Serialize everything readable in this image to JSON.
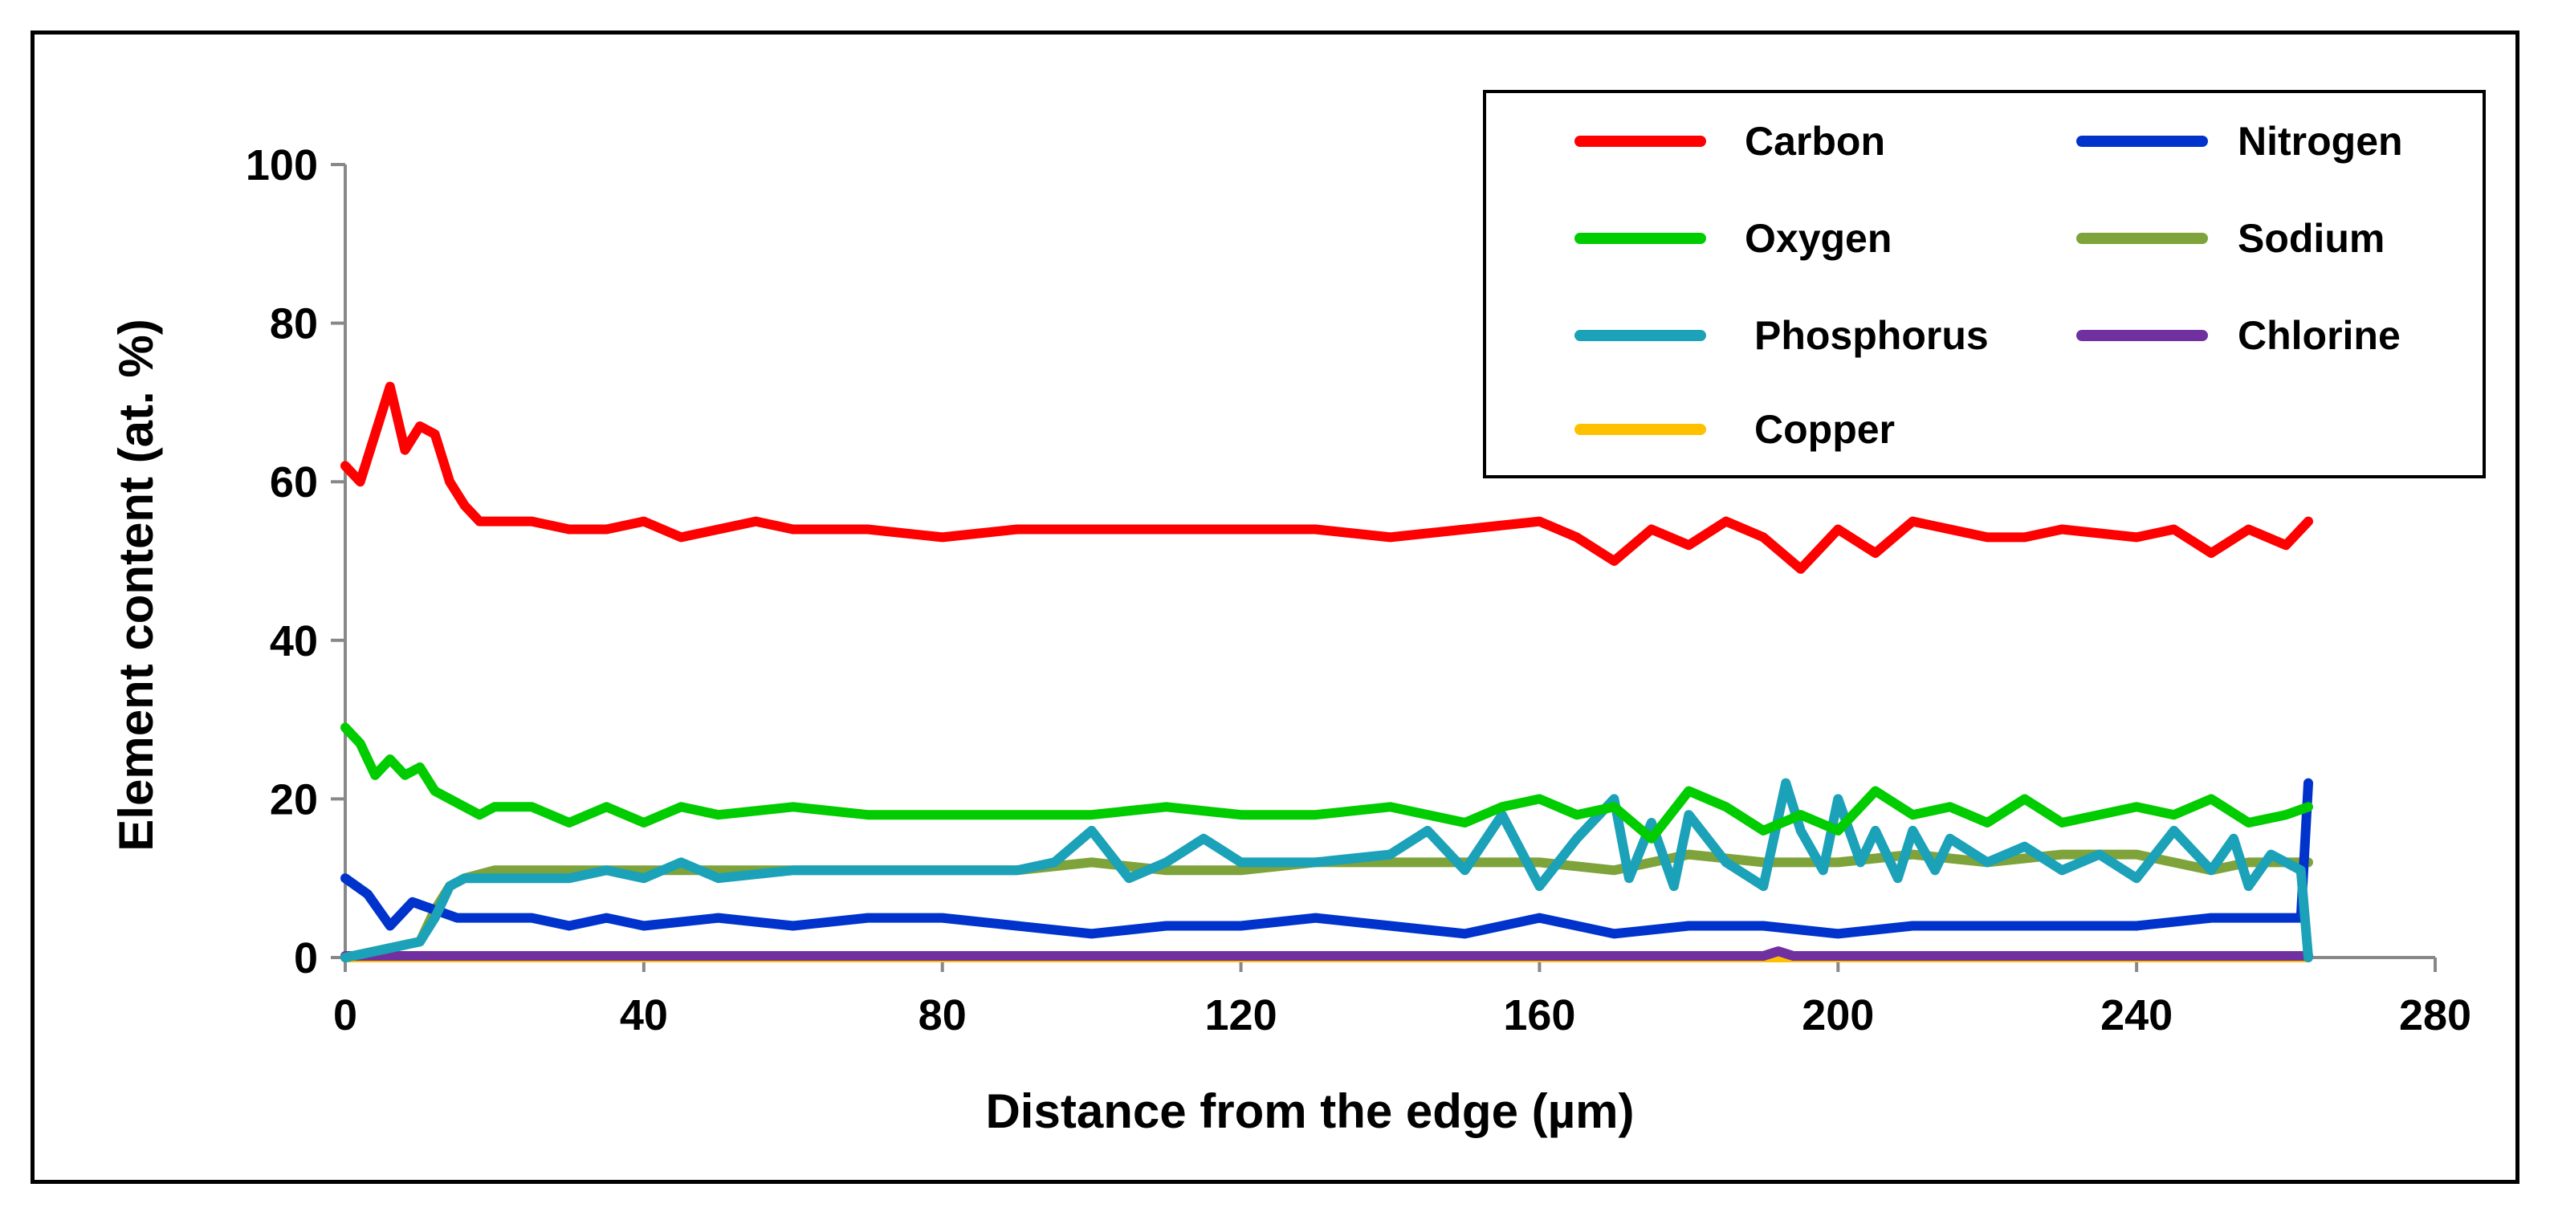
{
  "chart_data": {
    "type": "line",
    "title": "",
    "xlabel": "Distance from the edge (µm)",
    "ylabel": "Element content (at. %)",
    "xlim": [
      0,
      280
    ],
    "ylim": [
      0,
      100
    ],
    "xticks": [
      "0",
      "40",
      "80",
      "120",
      "160",
      "200",
      "240",
      "280"
    ],
    "yticks": [
      "0",
      "20",
      "40",
      "60",
      "80",
      "100"
    ],
    "grid": false,
    "legend_position": "top-right",
    "series": [
      {
        "name": "Carbon",
        "color": "#ff0000",
        "x": [
          0,
          2,
          4,
          6,
          8,
          10,
          12,
          14,
          16,
          18,
          20,
          25,
          30,
          35,
          40,
          45,
          50,
          55,
          60,
          70,
          80,
          90,
          100,
          110,
          120,
          130,
          140,
          150,
          160,
          165,
          170,
          175,
          180,
          185,
          190,
          195,
          200,
          205,
          210,
          215,
          220,
          225,
          230,
          240,
          245,
          250,
          255,
          260,
          263
        ],
        "y": [
          62,
          60,
          66,
          72,
          64,
          67,
          66,
          60,
          57,
          55,
          55,
          55,
          54,
          54,
          55,
          53,
          54,
          55,
          54,
          54,
          53,
          54,
          54,
          54,
          54,
          54,
          53,
          54,
          55,
          53,
          50,
          54,
          52,
          55,
          53,
          49,
          54,
          51,
          55,
          54,
          53,
          53,
          54,
          53,
          54,
          51,
          54,
          52,
          55
        ]
      },
      {
        "name": "Nitrogen",
        "color": "#0033cc",
        "x": [
          0,
          3,
          6,
          9,
          12,
          15,
          20,
          25,
          30,
          35,
          40,
          50,
          60,
          70,
          80,
          90,
          100,
          110,
          120,
          130,
          140,
          150,
          160,
          170,
          180,
          190,
          200,
          210,
          220,
          230,
          240,
          250,
          255,
          260,
          262,
          263
        ],
        "y": [
          10,
          8,
          4,
          7,
          6,
          5,
          5,
          5,
          4,
          5,
          4,
          5,
          4,
          5,
          5,
          4,
          3,
          4,
          4,
          5,
          4,
          3,
          5,
          3,
          4,
          4,
          3,
          4,
          4,
          4,
          4,
          5,
          5,
          5,
          5,
          22
        ]
      },
      {
        "name": "Oxygen",
        "color": "#00cc00",
        "x": [
          0,
          2,
          4,
          6,
          8,
          10,
          12,
          14,
          16,
          18,
          20,
          25,
          30,
          35,
          40,
          45,
          50,
          60,
          70,
          80,
          90,
          100,
          110,
          120,
          130,
          140,
          150,
          155,
          160,
          165,
          170,
          175,
          180,
          185,
          190,
          195,
          200,
          205,
          210,
          215,
          220,
          225,
          230,
          240,
          245,
          250,
          255,
          260,
          263
        ],
        "y": [
          29,
          27,
          23,
          25,
          23,
          24,
          21,
          20,
          19,
          18,
          19,
          19,
          17,
          19,
          17,
          19,
          18,
          19,
          18,
          18,
          18,
          18,
          19,
          18,
          18,
          19,
          17,
          19,
          20,
          18,
          19,
          15,
          21,
          19,
          16,
          18,
          16,
          21,
          18,
          19,
          17,
          20,
          17,
          19,
          18,
          20,
          17,
          18,
          19
        ]
      },
      {
        "name": "Sodium",
        "color": "#7ea33a",
        "x": [
          0,
          5,
          10,
          12,
          14,
          16,
          20,
          25,
          30,
          40,
          50,
          60,
          70,
          80,
          90,
          100,
          110,
          120,
          130,
          140,
          150,
          160,
          170,
          180,
          190,
          200,
          210,
          220,
          230,
          240,
          250,
          255,
          260,
          263
        ],
        "y": [
          0,
          1,
          2,
          6,
          9,
          10,
          11,
          11,
          11,
          11,
          11,
          11,
          11,
          11,
          11,
          12,
          11,
          11,
          12,
          12,
          12,
          12,
          11,
          13,
          12,
          12,
          13,
          12,
          13,
          13,
          11,
          12,
          12,
          12
        ]
      },
      {
        "name": "Phosphorus",
        "color": "#1ba1b8",
        "x": [
          0,
          5,
          10,
          12,
          14,
          16,
          20,
          25,
          30,
          35,
          40,
          45,
          50,
          60,
          70,
          80,
          90,
          95,
          100,
          105,
          110,
          115,
          120,
          130,
          140,
          145,
          150,
          155,
          160,
          165,
          170,
          172,
          175,
          178,
          180,
          185,
          190,
          193,
          195,
          198,
          200,
          203,
          205,
          208,
          210,
          213,
          215,
          220,
          225,
          230,
          235,
          240,
          245,
          250,
          253,
          255,
          258,
          260,
          262,
          263
        ],
        "y": [
          0,
          1,
          2,
          5,
          9,
          10,
          10,
          10,
          10,
          11,
          10,
          12,
          10,
          11,
          11,
          11,
          11,
          12,
          16,
          10,
          12,
          15,
          12,
          12,
          13,
          16,
          11,
          18,
          9,
          15,
          20,
          10,
          17,
          9,
          18,
          12,
          9,
          22,
          16,
          11,
          20,
          12,
          16,
          10,
          16,
          11,
          15,
          12,
          14,
          11,
          13,
          10,
          16,
          11,
          15,
          9,
          13,
          12,
          11,
          0
        ]
      },
      {
        "name": "Chlorine",
        "color": "#7030a0",
        "x": [
          0,
          50,
          100,
          150,
          190,
          192,
          194,
          200,
          250,
          263
        ],
        "y": [
          0.2,
          0.2,
          0.2,
          0.2,
          0.2,
          0.8,
          0.2,
          0.2,
          0.2,
          0.2
        ]
      },
      {
        "name": "Copper",
        "color": "#ffc000",
        "x": [
          0,
          263
        ],
        "y": [
          0,
          0
        ]
      }
    ]
  },
  "legend": {
    "entries": [
      {
        "label": "Carbon"
      },
      {
        "label": "Nitrogen"
      },
      {
        "label": "Oxygen"
      },
      {
        "label": "Sodium"
      },
      {
        "label": "Phosphorus"
      },
      {
        "label": "Chlorine"
      },
      {
        "label": "Copper"
      }
    ]
  }
}
